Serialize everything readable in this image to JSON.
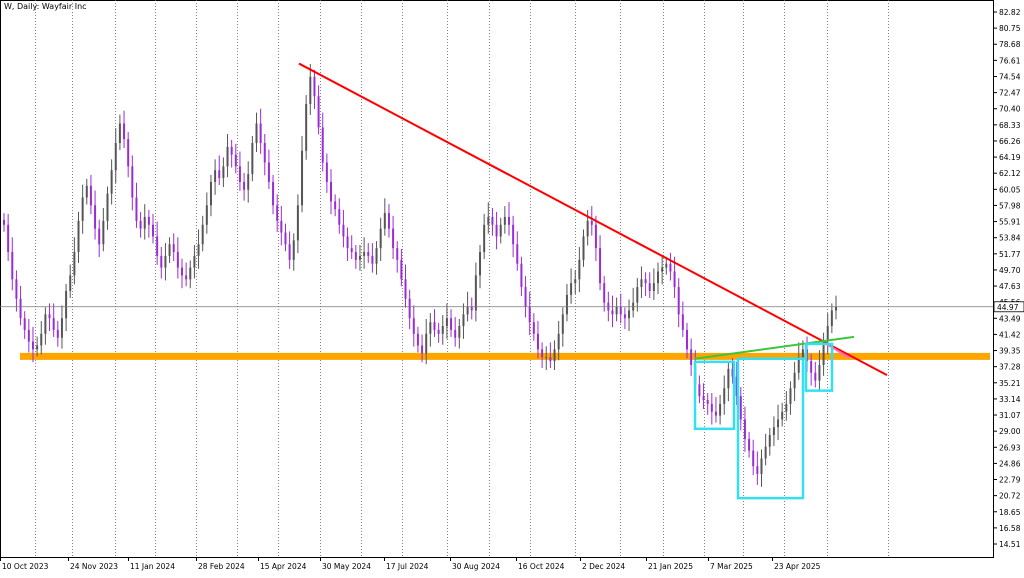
{
  "chart_data": {
    "type": "candlestick",
    "title": "W, Daily:  Wayfair Inc",
    "current_price": 44.97,
    "ylim": [
      13.5,
      84.2
    ],
    "y_ticks": [
      82.82,
      80.75,
      78.68,
      76.61,
      74.54,
      72.47,
      70.4,
      68.33,
      66.26,
      64.19,
      62.12,
      60.05,
      57.98,
      55.91,
      53.84,
      51.77,
      49.7,
      47.63,
      45.56,
      43.49,
      41.42,
      39.35,
      37.28,
      35.21,
      33.14,
      31.07,
      29.0,
      26.93,
      24.86,
      22.79,
      20.72,
      18.65,
      16.58,
      14.51
    ],
    "y_tick_labels": [
      "82.82",
      "80.75",
      "78.68",
      "76.61",
      "74.54",
      "72.47",
      "70.40",
      "68.33",
      "66.26",
      "64.19",
      "62.12",
      "60.05",
      "57.98",
      "55.91",
      "53.84",
      "51.77",
      "49.70",
      "47.63",
      "45.56",
      "43.49",
      "41.42",
      "39.35",
      "37.28",
      "35.21",
      "33.14",
      "31.07",
      "29.00",
      "26.93",
      "24.86",
      "22.79",
      "20.72",
      "18.65",
      "16.58",
      "14.51"
    ],
    "x_tick_labels": [
      "10 Oct 2023",
      "24 Nov 2023",
      "11 Jan 2024",
      "28 Feb 2024",
      "15 Apr 2024",
      "30 May 2024",
      "17 Jul 2024",
      "30 Aug 2024",
      "16 Oct 2024",
      "2 Dec 2024",
      "21 Jan 2025",
      "7 Mar 2025",
      "23 Apr 2025"
    ],
    "closes": [
      55.5,
      52.0,
      48.5,
      46.0,
      43.5,
      42.0,
      40.5,
      39.5,
      40.0,
      41.5,
      44.0,
      43.5,
      42.0,
      41.0,
      43.5,
      47.0,
      49.0,
      52.0,
      56.0,
      59.0,
      60.5,
      58.0,
      55.0,
      53.0,
      56.0,
      59.5,
      62.5,
      66.0,
      68.5,
      66.5,
      63.0,
      59.0,
      56.0,
      55.0,
      56.5,
      55.5,
      54.0,
      51.5,
      50.0,
      51.5,
      53.0,
      52.0,
      50.0,
      49.0,
      48.5,
      50.0,
      51.5,
      53.0,
      55.5,
      58.0,
      61.0,
      62.5,
      61.5,
      63.0,
      65.5,
      64.5,
      63.0,
      61.0,
      60.0,
      62.0,
      66.0,
      68.5,
      66.0,
      63.5,
      61.0,
      58.0,
      56.0,
      54.5,
      53.0,
      51.0,
      53.5,
      58.0,
      65.0,
      71.0,
      74.5,
      72.0,
      68.0,
      63.5,
      61.0,
      58.5,
      57.5,
      55.5,
      54.0,
      52.5,
      52.0,
      51.0,
      51.5,
      52.0,
      51.5,
      50.5,
      52.5,
      55.0,
      57.0,
      55.0,
      52.5,
      51.0,
      48.5,
      46.0,
      43.5,
      41.5,
      40.0,
      39.0,
      41.5,
      43.0,
      42.0,
      41.5,
      42.5,
      43.5,
      42.0,
      41.0,
      42.5,
      44.0,
      45.0,
      44.5,
      49.0,
      52.0,
      55.5,
      56.5,
      55.5,
      54.0,
      55.5,
      56.5,
      55.5,
      53.0,
      50.5,
      47.5,
      45.0,
      43.0,
      41.5,
      39.5,
      38.5,
      38.5,
      38.0,
      39.5,
      41.5,
      44.0,
      46.5,
      48.0,
      48.5,
      51.0,
      54.0,
      56.0,
      55.5,
      52.5,
      48.0,
      45.5,
      44.5,
      44.0,
      45.0,
      44.0,
      43.5,
      44.5,
      45.5,
      47.5,
      48.5,
      48.0,
      47.0,
      48.0,
      49.5,
      50.0,
      50.5,
      49.5,
      47.5,
      44.0,
      42.0,
      39.5,
      37.5,
      35.0,
      33.5,
      33.0,
      32.5,
      31.5,
      31.0,
      32.5,
      34.5,
      37.0,
      36.0,
      33.5,
      30.5,
      28.0,
      26.5,
      24.5,
      23.5,
      25.5,
      27.0,
      28.5,
      29.5,
      30.5,
      31.5,
      32.5,
      34.5,
      36.5,
      38.5,
      39.5,
      38.0,
      36.5,
      35.5,
      37.5,
      40.5,
      42.5,
      44.5,
      45.0
    ]
  }
}
